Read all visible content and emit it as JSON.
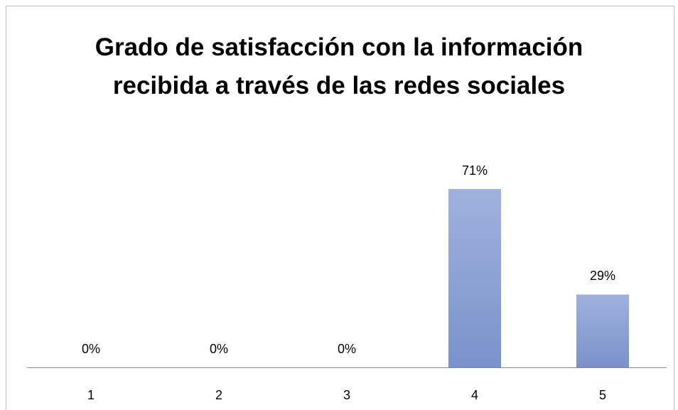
{
  "chart_data": {
    "type": "bar",
    "title": "Grado de satisfacción con la información recibida a través de las redes sociales",
    "categories": [
      "1",
      "2",
      "3",
      "4",
      "5"
    ],
    "values": [
      0,
      0,
      0,
      71,
      29
    ],
    "value_labels": [
      "0%",
      "0%",
      "0%",
      "71%",
      "29%"
    ],
    "color": "#8da2d6"
  }
}
